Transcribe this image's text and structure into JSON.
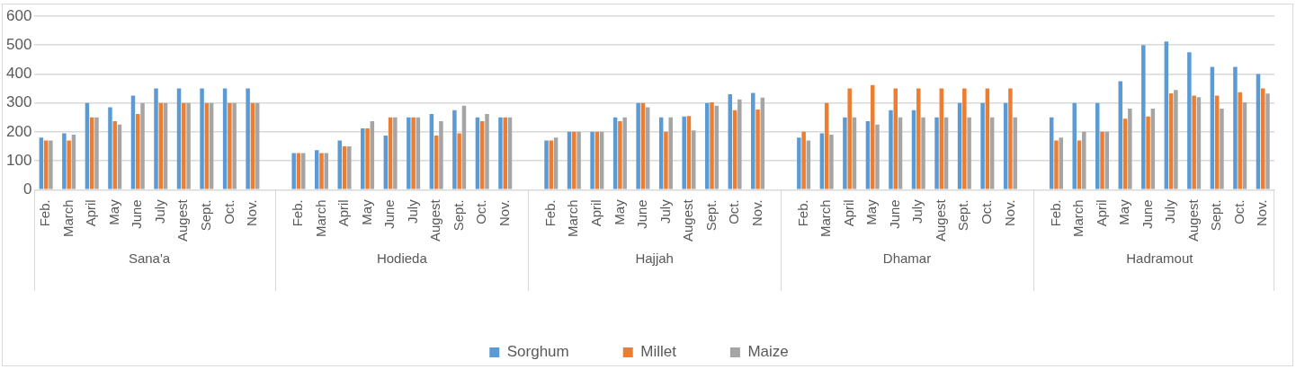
{
  "chart_data": {
    "type": "bar",
    "categories": [
      "Feb.",
      "March",
      "April",
      "May",
      "June",
      "July",
      "Augest",
      "Sept.",
      "Oct.",
      "Nov.",
      null,
      "Feb.",
      "March",
      "April",
      "May",
      "June",
      "July",
      "Augest",
      "Sept.",
      "Oct.",
      "Nov.",
      null,
      "Feb.",
      "March",
      "April",
      "May",
      "June",
      "July",
      "Augest",
      "Sept.",
      "Oct.",
      "Nov.",
      null,
      "Feb.",
      "March",
      "April",
      "May",
      "June",
      "July",
      "Augest",
      "Sept.",
      "Oct.",
      "Nov.",
      null,
      "Feb.",
      "March",
      "April",
      "May",
      "June",
      "July",
      "Augest",
      "Sept.",
      "Oct.",
      "Nov."
    ],
    "series": [
      {
        "name": "Sorghum",
        "color": "#5b9bd5",
        "values": [
          180,
          195,
          300,
          285,
          325,
          350,
          350,
          350,
          350,
          350,
          null,
          127,
          137,
          170,
          212,
          187,
          250,
          262,
          275,
          250,
          250,
          null,
          170,
          200,
          200,
          250,
          300,
          250,
          253,
          300,
          330,
          335,
          null,
          180,
          195,
          250,
          237,
          275,
          275,
          250,
          300,
          300,
          300,
          null,
          250,
          300,
          300,
          375,
          500,
          512,
          475,
          425,
          425,
          400
        ]
      },
      {
        "name": "Millet",
        "color": "#ed7d31",
        "values": [
          170,
          170,
          250,
          237,
          262,
          300,
          300,
          300,
          300,
          300,
          null,
          127,
          127,
          150,
          212,
          250,
          250,
          187,
          195,
          237,
          250,
          null,
          170,
          200,
          200,
          237,
          300,
          200,
          255,
          302,
          275,
          277,
          null,
          200,
          300,
          350,
          362,
          350,
          350,
          350,
          350,
          350,
          350,
          null,
          170,
          170,
          200,
          245,
          253,
          333,
          325,
          325,
          337,
          350
        ]
      },
      {
        "name": "Maize",
        "color": "#a5a5a5",
        "values": [
          170,
          190,
          250,
          225,
          300,
          300,
          300,
          300,
          300,
          300,
          null,
          127,
          127,
          150,
          237,
          250,
          250,
          237,
          290,
          262,
          250,
          null,
          180,
          200,
          200,
          250,
          285,
          250,
          205,
          290,
          312,
          318,
          null,
          170,
          190,
          250,
          225,
          250,
          250,
          250,
          250,
          250,
          250,
          null,
          180,
          200,
          200,
          280,
          280,
          345,
          320,
          280,
          302,
          332
        ]
      }
    ],
    "ylim": [
      0,
      600
    ],
    "yticks": [
      0,
      100,
      200,
      300,
      400,
      500,
      600
    ],
    "grid": "y",
    "legend": "bottom",
    "annotations": [
      "Sana'a",
      "Hodieda",
      "Hajjah",
      "Dhamar",
      "Hadramout"
    ]
  }
}
